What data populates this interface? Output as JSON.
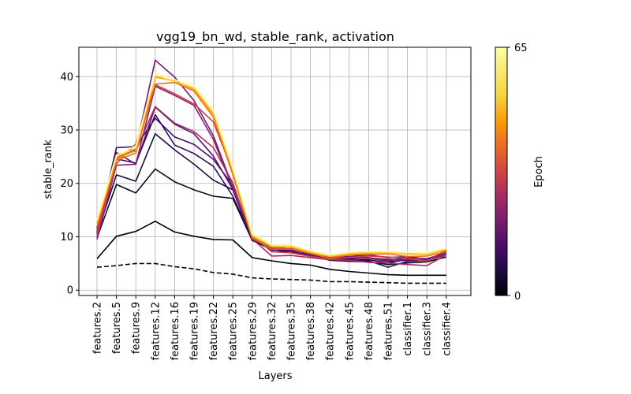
{
  "chart_data": {
    "type": "line",
    "title": "vgg19_bn_wd, stable_rank, activation",
    "xlabel": "Layers",
    "ylabel": "stable_rank",
    "categories": [
      "features.2",
      "features.5",
      "features.9",
      "features.12",
      "features.16",
      "features.19",
      "features.22",
      "features.25",
      "features.29",
      "features.32",
      "features.35",
      "features.38",
      "features.42",
      "features.45",
      "features.48",
      "features.51",
      "classifier.1",
      "classifier.3",
      "classifier.4"
    ],
    "ylim": [
      -1,
      45.5
    ],
    "yticks": [
      0,
      10,
      20,
      30,
      40
    ],
    "grid": true,
    "colorbar": {
      "label": "Epoch",
      "min": 0,
      "max": 65,
      "tick_labels": [
        "0",
        "65"
      ],
      "colormap": "inferno"
    },
    "series": [
      {
        "epoch": 0,
        "style": "dashed",
        "color": "#000004",
        "values": [
          4.3,
          4.6,
          5.0,
          5.0,
          4.4,
          4.0,
          3.3,
          3.0,
          2.3,
          2.1,
          2.0,
          1.9,
          1.6,
          1.6,
          1.5,
          1.4,
          1.3,
          1.3,
          1.3
        ]
      },
      {
        "epoch": 1,
        "style": "solid",
        "color": "#000004",
        "values": [
          5.9,
          10.1,
          11.0,
          12.9,
          10.9,
          10.1,
          9.5,
          9.4,
          6.1,
          5.5,
          5.0,
          4.7,
          3.9,
          3.5,
          3.2,
          2.9,
          2.8,
          2.8,
          2.8
        ]
      },
      {
        "epoch": 3,
        "style": "solid",
        "color": "#0c0826",
        "values": [
          9.8,
          19.8,
          18.2,
          22.7,
          20.3,
          18.8,
          17.6,
          17.2,
          9.3,
          7.6,
          7.0,
          6.6,
          5.6,
          5.4,
          5.3,
          4.8,
          5.1,
          5.3,
          6.2
        ]
      },
      {
        "epoch": 6,
        "style": "solid",
        "color": "#1a0b40",
        "values": [
          10.5,
          21.6,
          20.4,
          29.3,
          26.3,
          23.6,
          20.6,
          18.8,
          9.5,
          7.9,
          7.5,
          6.8,
          5.9,
          5.6,
          5.7,
          5.1,
          5.8,
          5.6,
          6.6
        ]
      },
      {
        "epoch": 10,
        "style": "solid",
        "color": "#300a5b",
        "values": [
          11.6,
          24.6,
          23.8,
          32.9,
          27.2,
          25.6,
          23.2,
          17.6,
          9.7,
          8.0,
          7.5,
          6.9,
          6.2,
          5.7,
          5.5,
          4.3,
          5.4,
          5.6,
          7.2
        ]
      },
      {
        "epoch": 14,
        "style": "solid",
        "color": "#450a69",
        "values": [
          11.0,
          26.7,
          26.9,
          32.2,
          28.7,
          27.3,
          24.5,
          19.6,
          10.0,
          7.6,
          7.3,
          6.4,
          5.8,
          5.9,
          6.0,
          5.4,
          5.6,
          5.5,
          7.4
        ]
      },
      {
        "epoch": 18,
        "style": "solid",
        "color": "#5c126e",
        "values": [
          10.8,
          25.8,
          23.6,
          34.3,
          31.1,
          29.3,
          25.1,
          18.9,
          9.8,
          7.4,
          7.8,
          7.1,
          6.4,
          6.3,
          6.6,
          6.1,
          6.3,
          5.8,
          6.9
        ]
      },
      {
        "epoch": 22,
        "style": "solid",
        "color": "#731a6e",
        "values": [
          11.2,
          24.5,
          26.4,
          43.1,
          39.9,
          35.5,
          28.9,
          19.3,
          9.8,
          7.7,
          7.6,
          6.6,
          5.9,
          6.3,
          6.1,
          5.6,
          6.1,
          5.9,
          7.0
        ]
      },
      {
        "epoch": 26,
        "style": "solid",
        "color": "#88216a",
        "values": [
          9.5,
          23.4,
          23.6,
          38.2,
          36.5,
          34.6,
          28.2,
          19.1,
          10.0,
          8.0,
          7.7,
          7.3,
          6.0,
          6.2,
          6.0,
          5.8,
          5.7,
          5.6,
          6.6
        ]
      },
      {
        "epoch": 32,
        "style": "solid",
        "color": "#a92e5e",
        "values": [
          10.2,
          24.9,
          26.1,
          34.4,
          31.3,
          29.7,
          26.7,
          20.1,
          9.6,
          6.4,
          6.5,
          6.1,
          5.7,
          5.6,
          5.2,
          5.1,
          4.8,
          4.6,
          6.6
        ]
      },
      {
        "epoch": 38,
        "style": "solid",
        "color": "#c73e4c",
        "values": [
          10.9,
          23.7,
          27.4,
          38.5,
          36.8,
          34.9,
          31.5,
          22.1,
          10.3,
          7.2,
          7.0,
          6.3,
          5.8,
          6.1,
          6.4,
          6.2,
          6.0,
          5.4,
          7.6
        ]
      },
      {
        "epoch": 46,
        "style": "solid",
        "color": "#ed6925",
        "values": [
          11.9,
          24.3,
          25.7,
          38.6,
          38.9,
          37.3,
          32.4,
          21.6,
          9.8,
          7.7,
          7.7,
          6.9,
          6.0,
          6.6,
          6.7,
          6.8,
          6.3,
          6.4,
          7.2
        ]
      },
      {
        "epoch": 54,
        "style": "solid",
        "color": "#fb9b06",
        "values": [
          12.5,
          24.6,
          26.2,
          39.9,
          39.2,
          37.6,
          32.9,
          22.2,
          10.1,
          8.1,
          8.0,
          7.0,
          6.3,
          6.7,
          7.0,
          7.0,
          6.8,
          6.7,
          7.5
        ]
      },
      {
        "epoch": 60,
        "style": "solid",
        "color": "#f7d13d",
        "values": [
          12.9,
          25.0,
          26.6,
          40.2,
          39.1,
          37.9,
          33.2,
          22.6,
          10.3,
          8.3,
          8.3,
          7.2,
          6.4,
          6.9,
          7.1,
          7.0,
          6.9,
          6.8,
          7.7
        ]
      },
      {
        "epoch": 65,
        "style": "solid",
        "color": "#fcffa4",
        "values": [
          13.2,
          25.3,
          27.0,
          40.6,
          39.4,
          38.3,
          33.7,
          23.0,
          10.6,
          8.5,
          8.5,
          7.4,
          6.6,
          7.1,
          7.3,
          7.3,
          7.1,
          7.0,
          7.9
        ]
      }
    ]
  }
}
